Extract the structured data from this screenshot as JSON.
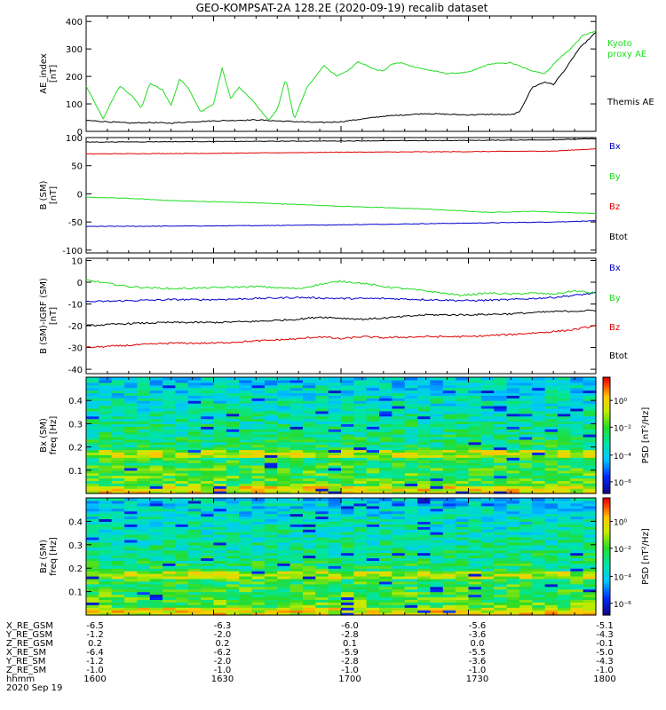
{
  "title": "GEO-KOMPSAT-2A 128.2E (2020-09-19) recalib dataset",
  "colors": {
    "black": "#000000",
    "green": "#22dd22",
    "red": "#dd0000",
    "blue": "#0000cc"
  },
  "chart_data": [
    {
      "type": "line",
      "ylabel": "AE_index [nT]",
      "ylim": [
        0,
        420
      ],
      "yticks": [
        0,
        100,
        200,
        300,
        400
      ],
      "xlim": [
        0,
        120
      ],
      "series": [
        {
          "name": "Kyoto proxy AE",
          "label_lines": [
            "Kyoto",
            "proxy AE"
          ],
          "color": "#22dd22",
          "x": [
            0,
            4,
            6,
            8,
            11,
            13,
            15,
            18,
            20,
            22,
            24,
            27,
            30,
            32,
            34,
            36,
            39,
            43,
            45,
            47,
            49,
            52,
            56,
            59,
            62,
            64,
            66,
            68,
            70,
            72,
            74,
            76,
            80,
            85,
            90,
            95,
            100,
            104,
            108,
            111,
            114,
            117,
            120
          ],
          "y": [
            165,
            45,
            110,
            165,
            125,
            85,
            175,
            150,
            95,
            190,
            160,
            70,
            100,
            230,
            120,
            160,
            115,
            40,
            80,
            190,
            45,
            160,
            240,
            200,
            225,
            255,
            240,
            225,
            220,
            245,
            250,
            240,
            225,
            210,
            215,
            245,
            250,
            225,
            210,
            260,
            300,
            350,
            365
          ]
        },
        {
          "name": "Themis AE",
          "label_lines": [
            "Themis AE"
          ],
          "color": "#000000",
          "x": [
            0,
            10,
            15,
            20,
            25,
            30,
            35,
            40,
            45,
            50,
            55,
            60,
            65,
            70,
            75,
            80,
            85,
            90,
            95,
            100,
            102,
            105,
            108,
            110,
            113,
            116,
            120
          ],
          "y": [
            40,
            30,
            32,
            30,
            35,
            38,
            40,
            42,
            38,
            35,
            32,
            35,
            45,
            55,
            60,
            65,
            62,
            60,
            62,
            60,
            70,
            160,
            180,
            170,
            230,
            300,
            360
          ]
        }
      ]
    },
    {
      "type": "line",
      "ylabel": "B (SM) [nT]",
      "ylim": [
        -105,
        100
      ],
      "yticks": [
        -100,
        -50,
        0,
        50,
        100
      ],
      "xlim": [
        0,
        120
      ],
      "series": [
        {
          "name": "Bx",
          "color": "#0000cc",
          "x": [
            0,
            30,
            60,
            90,
            110,
            120
          ],
          "y": [
            -58,
            -57,
            -55,
            -52,
            -50,
            -48
          ]
        },
        {
          "name": "By",
          "color": "#22dd22",
          "x": [
            0,
            10,
            20,
            40,
            60,
            80,
            95,
            105,
            120
          ],
          "y": [
            -6,
            -8,
            -12,
            -16,
            -22,
            -27,
            -33,
            -31,
            -35
          ]
        },
        {
          "name": "Bz",
          "color": "#dd0000",
          "x": [
            0,
            30,
            60,
            90,
            110,
            120
          ],
          "y": [
            71,
            72,
            74,
            75,
            76,
            80
          ]
        },
        {
          "name": "Btot",
          "color": "#000000",
          "x": [
            0,
            30,
            60,
            90,
            110,
            120
          ],
          "y": [
            92,
            93,
            94,
            95,
            96,
            98
          ]
        }
      ]
    },
    {
      "type": "line",
      "ylabel": "B (SM)-IGRF (SM) [nT]",
      "ylim": [
        -42,
        11
      ],
      "yticks": [
        -40,
        -30,
        -20,
        -10,
        0,
        10
      ],
      "xlim": [
        0,
        120
      ],
      "series": [
        {
          "name": "Bx",
          "color": "#0000cc",
          "x": [
            0,
            10,
            20,
            30,
            40,
            50,
            60,
            70,
            80,
            90,
            100,
            110,
            120
          ],
          "y": [
            -9,
            -8.5,
            -8,
            -8,
            -7.5,
            -7,
            -7.5,
            -7.5,
            -8,
            -8.5,
            -8,
            -7,
            -5
          ]
        },
        {
          "name": "By",
          "color": "#22dd22",
          "x": [
            0,
            10,
            20,
            30,
            40,
            50,
            55,
            60,
            65,
            70,
            75,
            80,
            88,
            95,
            100,
            105,
            110,
            115,
            120
          ],
          "y": [
            1,
            -2,
            -3,
            -2.5,
            -2,
            -3,
            -1,
            0.5,
            -0.5,
            -2,
            -3,
            -4,
            -6,
            -5,
            -5.5,
            -5,
            -5.5,
            -4,
            -5
          ]
        },
        {
          "name": "Bz",
          "color": "#dd0000",
          "x": [
            0,
            10,
            20,
            30,
            40,
            50,
            55,
            60,
            65,
            70,
            80,
            90,
            100,
            108,
            114,
            120
          ],
          "y": [
            -30,
            -29,
            -28,
            -28,
            -27,
            -26,
            -25,
            -26,
            -25,
            -25.5,
            -25,
            -25,
            -24,
            -23,
            -22,
            -20
          ]
        },
        {
          "name": "Btot",
          "color": "#000000",
          "x": [
            0,
            10,
            20,
            30,
            40,
            50,
            55,
            60,
            65,
            70,
            80,
            90,
            100,
            110,
            120
          ],
          "y": [
            -20,
            -19,
            -18.5,
            -18.5,
            -18,
            -17,
            -16,
            -16.5,
            -17,
            -16.5,
            -15,
            -15,
            -14.5,
            -13.5,
            -13
          ]
        }
      ]
    },
    {
      "type": "heatmap",
      "ylabel_lines": [
        "Bx (SM)",
        "freq [Hz]"
      ],
      "ylim": [
        0,
        0.5
      ],
      "yticks": [
        0.1,
        0.2,
        0.3,
        0.4
      ],
      "xlim": [
        0,
        120
      ],
      "colorbar_label": "PSD [nT²/Hz]",
      "colorbar_ticks": [
        "10⁰",
        "10⁻²",
        "10⁻⁴",
        "10⁻⁶"
      ]
    },
    {
      "type": "heatmap",
      "ylabel_lines": [
        "Bz (SM)",
        "freq [Hz]"
      ],
      "ylim": [
        0,
        0.5
      ],
      "yticks": [
        0.1,
        0.2,
        0.3,
        0.4
      ],
      "xlim": [
        0,
        120
      ],
      "colorbar_label": "PSD [nT²/Hz]",
      "colorbar_ticks": [
        "10⁰",
        "10⁻²",
        "10⁻⁴",
        "10⁻⁶"
      ]
    }
  ],
  "ephemeris": {
    "rows": [
      {
        "label": "X_RE_GSM",
        "values": [
          "-6.5",
          "-6.3",
          "-6.0",
          "-5.6",
          "-5.1"
        ]
      },
      {
        "label": "Y_RE_GSM",
        "values": [
          "-1.2",
          "-2.0",
          "-2.8",
          "-3.6",
          "-4.3"
        ]
      },
      {
        "label": "Z_RE_GSM",
        "values": [
          "0.2",
          "0.2",
          "0.1",
          "0.0",
          "-0.1"
        ]
      },
      {
        "label": "X_RE_SM",
        "values": [
          "-6.4",
          "-6.2",
          "-5.9",
          "-5.5",
          "-5.0"
        ]
      },
      {
        "label": "Y_RE_SM",
        "values": [
          "-1.2",
          "-2.0",
          "-2.8",
          "-3.6",
          "-4.3"
        ]
      },
      {
        "label": "Z_RE_SM",
        "values": [
          "-1.0",
          "-1.0",
          "-1.0",
          "-1.0",
          "-1.0"
        ]
      },
      {
        "label": "hhmm",
        "values": [
          "1600",
          "1630",
          "1700",
          "1730",
          "1800"
        ]
      }
    ],
    "date": "2020 Sep 19"
  }
}
